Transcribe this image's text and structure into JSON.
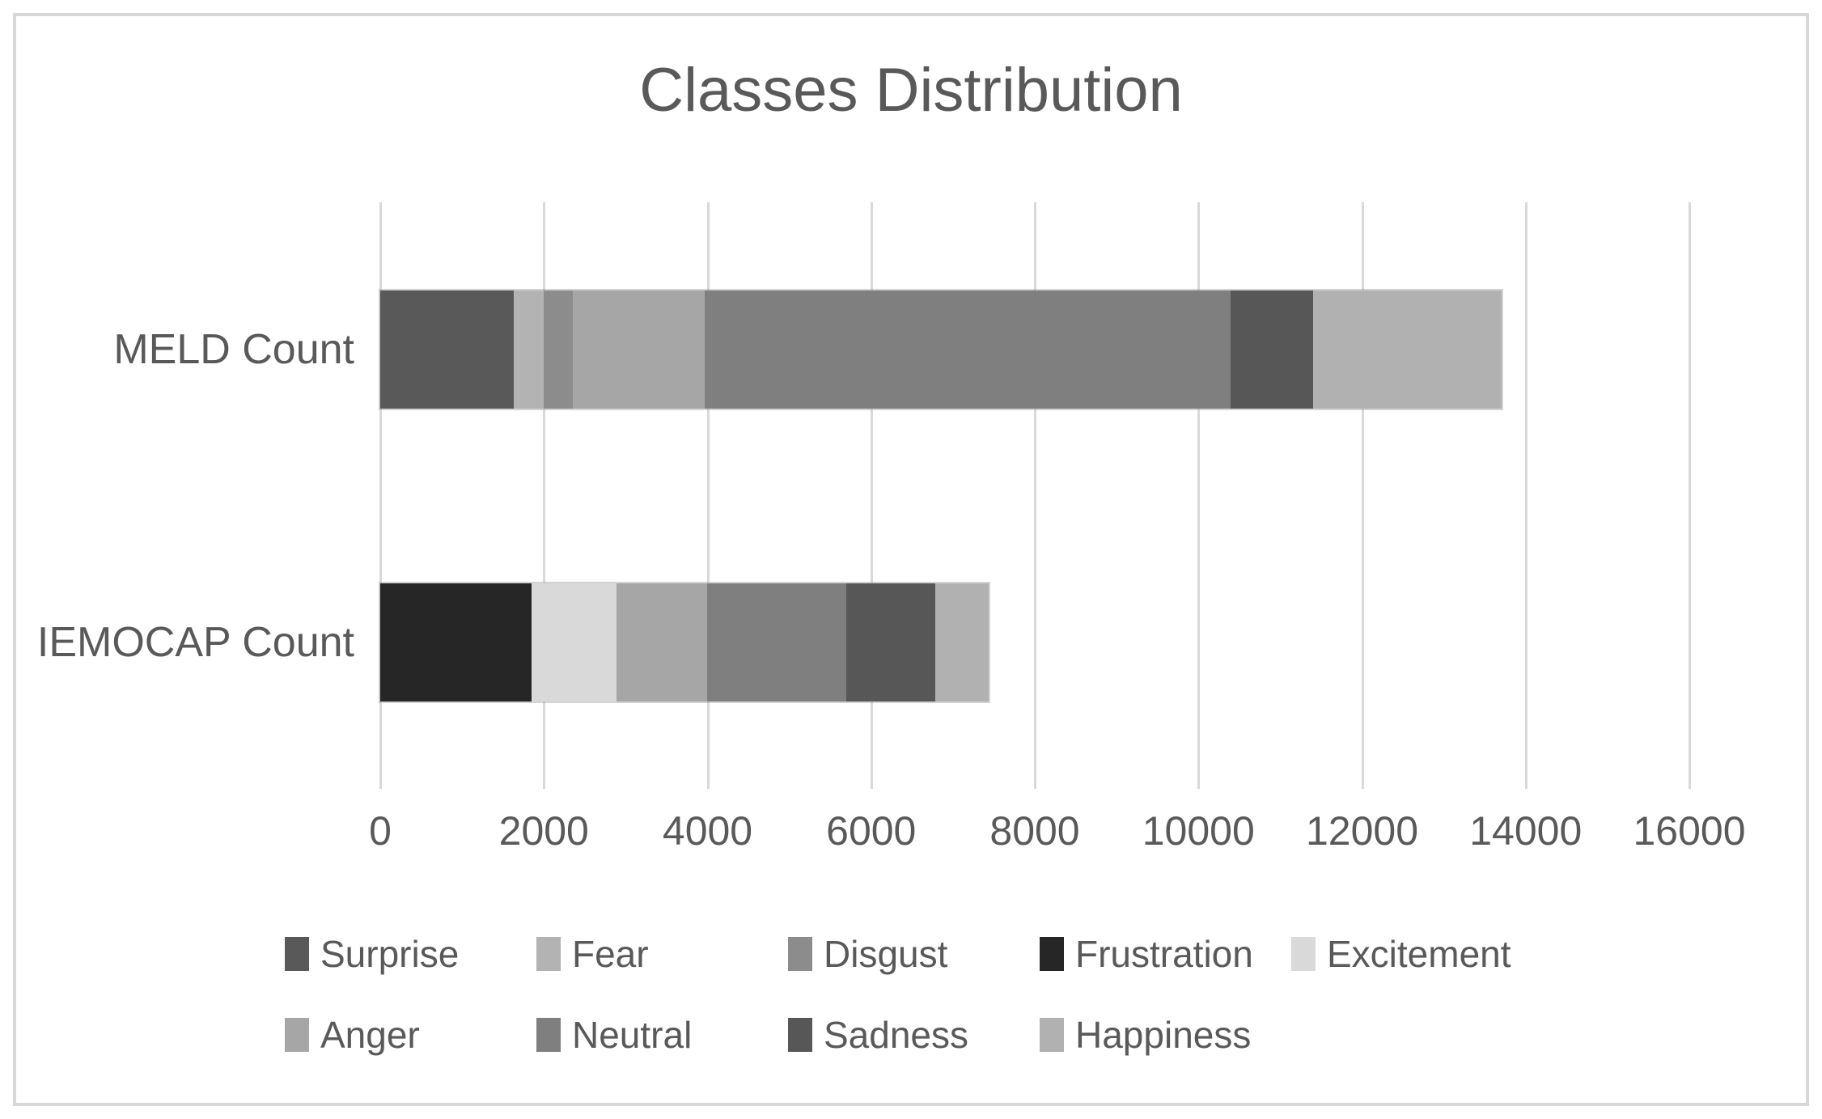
{
  "title": "Classes Distribution",
  "colors": {
    "text": "#595959",
    "gridline": "#d9d9d9",
    "frame_border": "#d8d8d8",
    "background": "#ffffff"
  },
  "chart_data": {
    "type": "bar",
    "orientation": "horizontal",
    "stacked": true,
    "title": "Classes Distribution",
    "xlabel": "",
    "ylabel": "",
    "grid": true,
    "legend_position": "bottom",
    "categories": [
      "MELD Count",
      "IEMOCAP Count"
    ],
    "series": [
      {
        "name": "Surprise",
        "color": "#595959",
        "values": [
          1636,
          0
        ]
      },
      {
        "name": "Fear",
        "color": "#b3b3b3",
        "values": [
          358,
          0
        ]
      },
      {
        "name": "Disgust",
        "color": "#8c8c8c",
        "values": [
          361,
          0
        ]
      },
      {
        "name": "Frustration",
        "color": "#262626",
        "values": [
          0,
          1849
        ]
      },
      {
        "name": "Excitement",
        "color": "#d9d9d9",
        "values": [
          0,
          1041
        ]
      },
      {
        "name": "Anger",
        "color": "#a6a6a6",
        "values": [
          1607,
          1103
        ]
      },
      {
        "name": "Neutral",
        "color": "#7f7f7f",
        "values": [
          6436,
          1708
        ]
      },
      {
        "name": "Sadness",
        "color": "#575757",
        "values": [
          1002,
          1084
        ]
      },
      {
        "name": "Happiness",
        "color": "#b1b1b1",
        "values": [
          2308,
          648
        ]
      }
    ],
    "x_axis": {
      "min": 0,
      "max": 16000,
      "step": 2000,
      "tick_labels": [
        "0",
        "2000",
        "4000",
        "6000",
        "8000",
        "10000",
        "12000",
        "14000",
        "16000"
      ]
    },
    "legend_rows": [
      [
        "Surprise",
        "Fear",
        "Disgust",
        "Frustration",
        "Excitement"
      ],
      [
        "Anger",
        "Neutral",
        "Sadness",
        "Happiness"
      ]
    ]
  }
}
